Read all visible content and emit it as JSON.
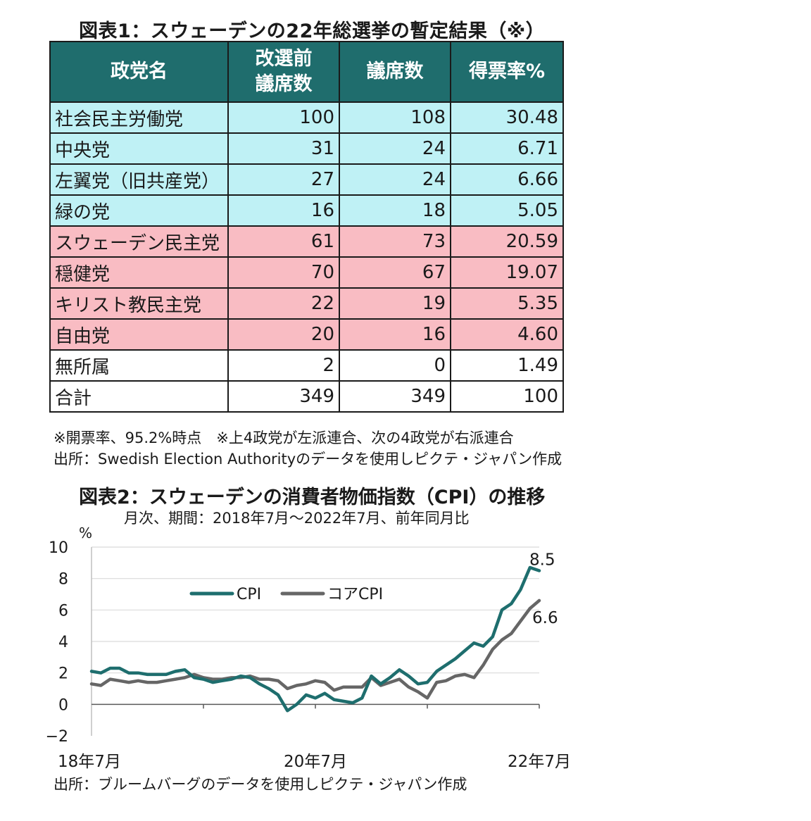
{
  "table": {
    "title": "図表1：スウェーデンの22年総選挙の暫定結果（※）",
    "headers": [
      "政党名",
      "改選前議席数",
      "議席数",
      "得票率%"
    ],
    "header_lines": {
      "prev_seats_line1": "改選前",
      "prev_seats_line2": "議席数"
    },
    "rows": [
      {
        "party": "社会民主労働党",
        "prev": "100",
        "seats": "108",
        "vote": "30.48",
        "bloc": "left"
      },
      {
        "party": "中央党",
        "prev": "31",
        "seats": "24",
        "vote": "6.71",
        "bloc": "left"
      },
      {
        "party": "左翼党（旧共産党）",
        "prev": "27",
        "seats": "24",
        "vote": "6.66",
        "bloc": "left"
      },
      {
        "party": "緑の党",
        "prev": "16",
        "seats": "18",
        "vote": "5.05",
        "bloc": "left"
      },
      {
        "party": "スウェーデン民主党",
        "prev": "61",
        "seats": "73",
        "vote": "20.59",
        "bloc": "right"
      },
      {
        "party": "穏健党",
        "prev": "70",
        "seats": "67",
        "vote": "19.07",
        "bloc": "right"
      },
      {
        "party": "キリスト教民主党",
        "prev": "22",
        "seats": "19",
        "vote": "5.35",
        "bloc": "right"
      },
      {
        "party": "自由党",
        "prev": "20",
        "seats": "16",
        "vote": "4.60",
        "bloc": "right"
      },
      {
        "party": "無所属",
        "prev": "2",
        "seats": "0",
        "vote": "1.49",
        "bloc": "other"
      },
      {
        "party": "合計",
        "prev": "349",
        "seats": "349",
        "vote": "100",
        "bloc": "other"
      }
    ],
    "note1": "※開票率、95.2%時点　※上4政党が左派連合、次の4政党が右派連合",
    "source": "出所：Swedish Election Authorityのデータを使用しピクテ・ジャパン作成"
  },
  "colors": {
    "header_bg": "#1f6d6d",
    "left_bloc": "#bff1f5",
    "right_bloc": "#f9bcc3",
    "cpi": "#1e6e6e",
    "core_cpi": "#666666"
  },
  "chart_data": {
    "type": "line",
    "title": "図表2：スウェーデンの消費者物価指数（CPI）の推移",
    "subtitle": "月次、期間：2018年7月〜2022年7月、前年同月比",
    "ylabel": "%",
    "ylim": [
      -2,
      10
    ],
    "yticks": [
      "10",
      "8",
      "6",
      "4",
      "2",
      "0",
      "−2"
    ],
    "xtick_labels": [
      "18年7月",
      "20年7月",
      "22年7月"
    ],
    "x_range": [
      "2018-07",
      "2022-07"
    ],
    "grid": true,
    "legend_position": "top-center",
    "series": [
      {
        "name": "CPI",
        "end_label": "8.5",
        "values": [
          2.1,
          2.0,
          2.3,
          2.3,
          2.0,
          2.0,
          1.9,
          1.9,
          1.9,
          2.1,
          2.2,
          1.7,
          1.6,
          1.4,
          1.5,
          1.6,
          1.8,
          1.7,
          1.3,
          1.0,
          0.6,
          -0.4,
          0.0,
          0.6,
          0.4,
          0.7,
          0.3,
          0.2,
          0.1,
          0.4,
          1.8,
          1.3,
          1.7,
          2.2,
          1.8,
          1.3,
          1.4,
          2.1,
          2.5,
          2.9,
          3.4,
          3.9,
          3.7,
          4.3,
          6.0,
          6.4,
          7.3,
          8.7,
          8.5
        ]
      },
      {
        "name": "コアCPI",
        "end_label": "6.6",
        "values": [
          1.3,
          1.2,
          1.6,
          1.5,
          1.4,
          1.5,
          1.4,
          1.4,
          1.5,
          1.6,
          1.7,
          1.9,
          1.7,
          1.6,
          1.6,
          1.7,
          1.7,
          1.8,
          1.6,
          1.6,
          1.5,
          1.0,
          1.2,
          1.3,
          1.5,
          1.4,
          0.9,
          1.1,
          1.1,
          1.1,
          1.7,
          1.2,
          1.4,
          1.6,
          1.1,
          0.8,
          0.4,
          1.4,
          1.5,
          1.8,
          1.9,
          1.7,
          2.5,
          3.5,
          4.1,
          4.5,
          5.3,
          6.1,
          6.6
        ]
      }
    ],
    "source": "出所：ブルームバーグのデータを使用しピクテ・ジャパン作成"
  }
}
